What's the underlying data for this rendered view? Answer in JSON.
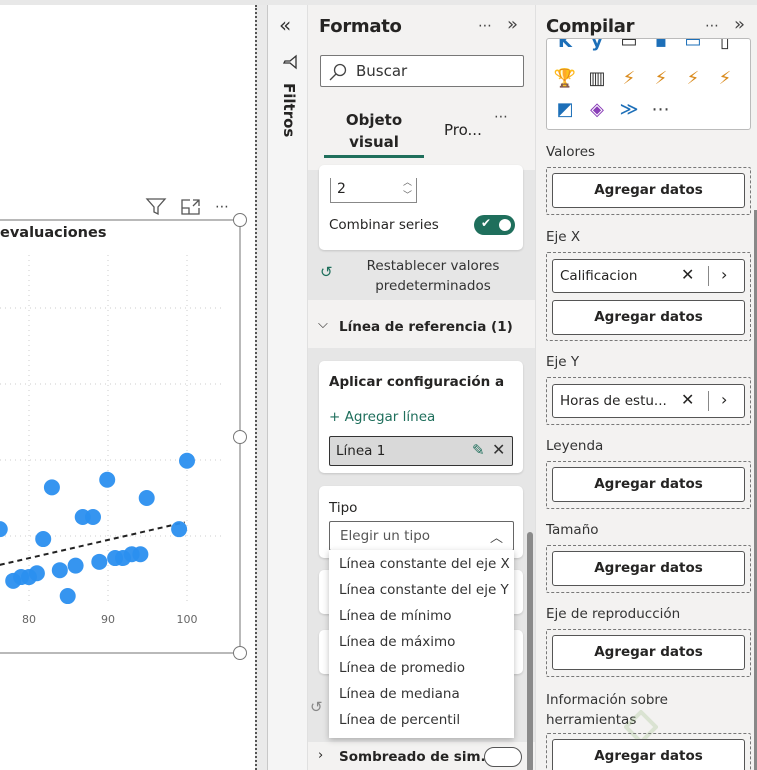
{
  "visual": {
    "title": "evaluaciones",
    "header_icons": [
      "filter-icon",
      "focus-mode-icon",
      "more-options-icon"
    ],
    "more": "⋯"
  },
  "chart_data": {
    "type": "scatter",
    "title": "evaluaciones",
    "x_ticks": [
      "80",
      "90",
      "100"
    ],
    "xlim": [
      76,
      102
    ],
    "ylim": [
      0,
      4.5
    ],
    "y_gridlines": [
      1,
      2,
      3,
      4
    ],
    "grid": true,
    "point_color": "#2b8fef",
    "points": [
      {
        "x": 76.3,
        "y": 1.09
      },
      {
        "x": 82.9,
        "y": 1.64
      },
      {
        "x": 89.9,
        "y": 1.74
      },
      {
        "x": 100,
        "y": 1.99
      },
      {
        "x": 94.9,
        "y": 1.5
      },
      {
        "x": 86.8,
        "y": 1.25
      },
      {
        "x": 88.1,
        "y": 1.25
      },
      {
        "x": 99.0,
        "y": 1.09
      },
      {
        "x": 81.8,
        "y": 0.96
      },
      {
        "x": 78.0,
        "y": 0.41
      },
      {
        "x": 79.0,
        "y": 0.46
      },
      {
        "x": 80.0,
        "y": 0.46
      },
      {
        "x": 81.0,
        "y": 0.51
      },
      {
        "x": 83.9,
        "y": 0.55
      },
      {
        "x": 85.9,
        "y": 0.61
      },
      {
        "x": 84.9,
        "y": 0.21
      },
      {
        "x": 88.9,
        "y": 0.66
      },
      {
        "x": 90.9,
        "y": 0.71
      },
      {
        "x": 91.9,
        "y": 0.71
      },
      {
        "x": 93.0,
        "y": 0.76
      },
      {
        "x": 94.1,
        "y": 0.76
      }
    ],
    "trend_line": {
      "style": "dashed",
      "color": "#222",
      "from": {
        "x": 76.3,
        "y": 0.62
      },
      "to": {
        "x": 99.7,
        "y": 1.18
      }
    }
  },
  "filters": {
    "label": "Filtros",
    "collapse": "«"
  },
  "format": {
    "title": "Formato",
    "more": "⋯",
    "collapse": "»",
    "search_placeholder": "Buscar",
    "tabs": [
      {
        "label": "Objeto visual",
        "active": true
      },
      {
        "label": "Pro..."
      }
    ],
    "tabs_more": "⋯",
    "number_value": "2",
    "combine_series": {
      "label": "Combinar series",
      "on": true
    },
    "reset_label": "Restablecer valores predeterminados",
    "section": "Línea de referencia (1)",
    "apply_label": "Aplicar configuración a",
    "add_line": "+ Agregar línea",
    "selected_line": "Línea 1",
    "type_label": "Tipo",
    "type_placeholder": "Elegir un tipo",
    "type_options": [
      "Línea constante del eje X",
      "Línea constante del eje Y",
      "Línea de mínimo",
      "Línea de máximo",
      "Línea de promedio",
      "Línea de mediana",
      "Línea de percentil"
    ],
    "next_section": "Sombreado de sim...",
    "accent": "#1f6f5c"
  },
  "build": {
    "title": "Compilar",
    "more": "⋯",
    "collapse": "»",
    "gallery_more": "⋯",
    "gallery_icons": [
      "kpi-icon",
      "card-icon",
      "table-icon",
      "slicer-icon",
      "narrative-icon",
      "paginated-icon",
      "trophy-icon",
      "report-icon",
      "power-apps-card-icon",
      "power-filter-icon",
      "power-text-filter-icon",
      "power-slicer-icon",
      "decomposition-tree-icon",
      "power-apps-icon",
      "power-automate-icon"
    ],
    "add_data": "Agregar datos",
    "wells": [
      {
        "label": "Valores"
      },
      {
        "label": "Eje X",
        "field": "Calificacion"
      },
      {
        "label": "Eje Y",
        "field": "Horas de estu..."
      },
      {
        "label": "Leyenda"
      },
      {
        "label": "Tamaño"
      },
      {
        "label": "Eje de reproducción"
      },
      {
        "label": "Información sobre herramientas"
      }
    ],
    "watermark": "Platzi"
  }
}
